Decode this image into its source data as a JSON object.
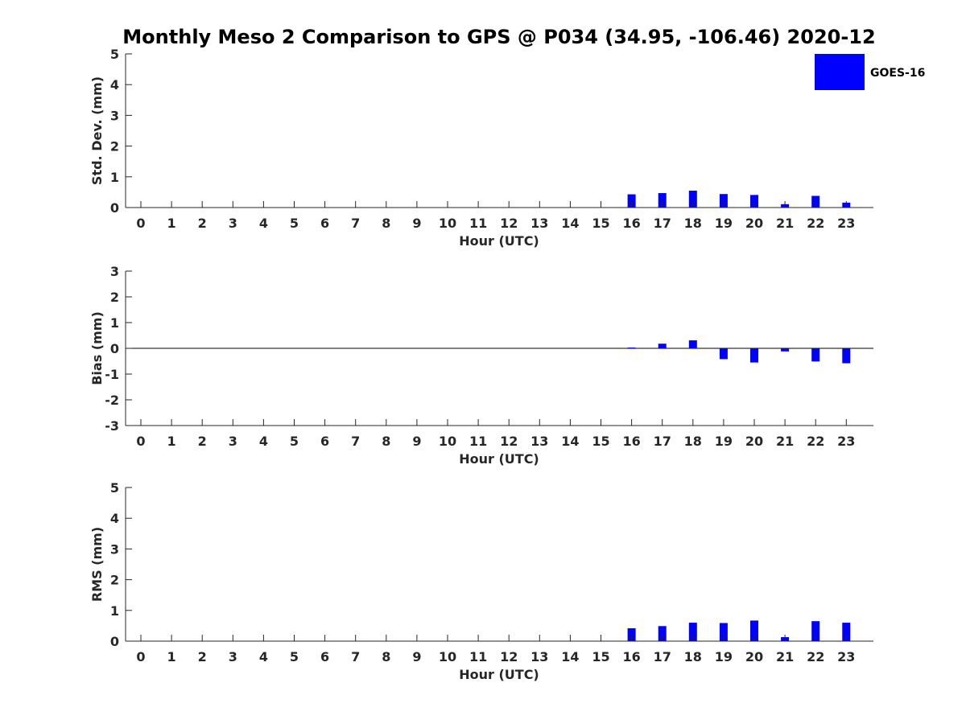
{
  "title": "Monthly Meso 2 Comparison to GPS @ P034 (34.95, -106.46) 2020-12",
  "legend": {
    "label": "GOES-16",
    "color": "#0000ff",
    "position": "top-right"
  },
  "colors": {
    "bar": "#0000ff",
    "axis": "#262626",
    "zero_line": "#000000"
  },
  "chart_data": [
    {
      "type": "bar",
      "xlabel": "Hour (UTC)",
      "ylabel": "Std. Dev. (mm)",
      "categories": [
        "0",
        "1",
        "2",
        "3",
        "4",
        "5",
        "6",
        "7",
        "8",
        "9",
        "10",
        "11",
        "12",
        "13",
        "14",
        "15",
        "16",
        "17",
        "18",
        "19",
        "20",
        "21",
        "22",
        "23"
      ],
      "values": [
        null,
        null,
        null,
        null,
        null,
        null,
        null,
        null,
        null,
        null,
        null,
        null,
        null,
        null,
        null,
        null,
        0.43,
        0.47,
        0.55,
        0.44,
        0.41,
        0.11,
        0.38,
        0.16
      ],
      "ylim": [
        0,
        5
      ],
      "yticks": [
        0,
        1,
        2,
        3,
        4,
        5
      ],
      "grid": false,
      "series": [
        {
          "name": "GOES-16"
        }
      ]
    },
    {
      "type": "bar",
      "xlabel": "Hour (UTC)",
      "ylabel": "Bias (mm)",
      "categories": [
        "0",
        "1",
        "2",
        "3",
        "4",
        "5",
        "6",
        "7",
        "8",
        "9",
        "10",
        "11",
        "12",
        "13",
        "14",
        "15",
        "16",
        "17",
        "18",
        "19",
        "20",
        "21",
        "22",
        "23"
      ],
      "values": [
        null,
        null,
        null,
        null,
        null,
        null,
        null,
        null,
        null,
        null,
        null,
        null,
        null,
        null,
        null,
        null,
        0.03,
        0.18,
        0.31,
        -0.42,
        -0.55,
        -0.12,
        -0.51,
        -0.58
      ],
      "ylim": [
        -3,
        3
      ],
      "yticks": [
        -3,
        -2,
        -1,
        0,
        1,
        2,
        3
      ],
      "zero_line": true,
      "grid": false,
      "series": [
        {
          "name": "GOES-16"
        }
      ]
    },
    {
      "type": "bar",
      "xlabel": "Hour (UTC)",
      "ylabel": "RMS (mm)",
      "categories": [
        "0",
        "1",
        "2",
        "3",
        "4",
        "5",
        "6",
        "7",
        "8",
        "9",
        "10",
        "11",
        "12",
        "13",
        "14",
        "15",
        "16",
        "17",
        "18",
        "19",
        "20",
        "21",
        "22",
        "23"
      ],
      "values": [
        null,
        null,
        null,
        null,
        null,
        null,
        null,
        null,
        null,
        null,
        null,
        null,
        null,
        null,
        null,
        null,
        0.42,
        0.49,
        0.6,
        0.59,
        0.67,
        0.13,
        0.65,
        0.6
      ],
      "ylim": [
        0,
        5
      ],
      "yticks": [
        0,
        1,
        2,
        3,
        4,
        5
      ],
      "grid": false,
      "series": [
        {
          "name": "GOES-16"
        }
      ]
    }
  ]
}
